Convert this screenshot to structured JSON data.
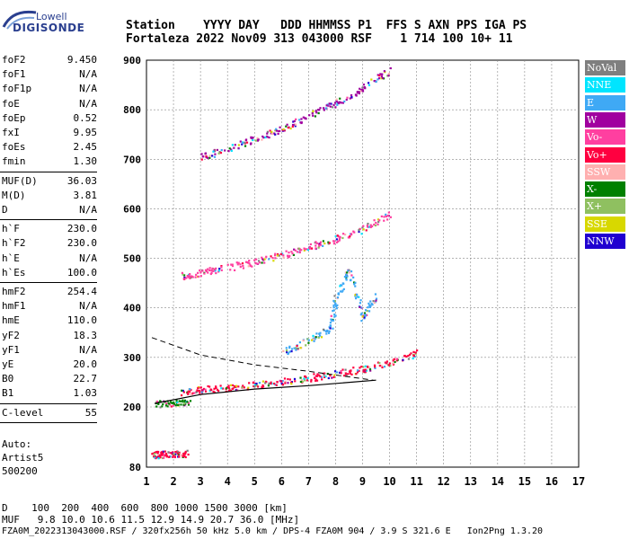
{
  "logo": {
    "top": "Lowell",
    "bottom": "DIGISONDE"
  },
  "header": {
    "row1": "Station    YYYY DAY   DDD HHMMSS P1  FFS S AXN PPS IGA PS",
    "row2": "Fortaleza 2022 Nov09 313 043000 RSF    1 714 100 10+ 11"
  },
  "params": [
    {
      "name": "foF2",
      "value": "9.450"
    },
    {
      "name": "foF1",
      "value": "N/A"
    },
    {
      "name": "foF1p",
      "value": "N/A"
    },
    {
      "name": "foE",
      "value": "N/A"
    },
    {
      "name": "foEp",
      "value": "0.52"
    },
    {
      "name": "fxI",
      "value": "9.95"
    },
    {
      "name": "foEs",
      "value": "2.45"
    },
    {
      "name": "fmin",
      "value": "1.30"
    },
    {
      "name": "MUF(D)",
      "value": "36.03"
    },
    {
      "name": "M(D)",
      "value": "3.81"
    },
    {
      "name": "D",
      "value": "N/A"
    },
    {
      "name": "h`F",
      "value": "230.0"
    },
    {
      "name": "h`F2",
      "value": "230.0"
    },
    {
      "name": "h`E",
      "value": "N/A"
    },
    {
      "name": "h`Es",
      "value": "100.0"
    },
    {
      "name": "hmF2",
      "value": "254.4"
    },
    {
      "name": "hmF1",
      "value": "N/A"
    },
    {
      "name": "hmE",
      "value": "110.0"
    },
    {
      "name": "yF2",
      "value": "18.3"
    },
    {
      "name": "yF1",
      "value": "N/A"
    },
    {
      "name": "yE",
      "value": "20.0"
    },
    {
      "name": "B0",
      "value": "22.7"
    },
    {
      "name": "B1",
      "value": "1.03"
    },
    {
      "name": "C-level",
      "value": "55"
    }
  ],
  "notes": {
    "auto": "Auto:",
    "artist": "Artist5",
    "code": "500200"
  },
  "legend": [
    {
      "label": "NoVal",
      "color": "#7f7f7f"
    },
    {
      "label": "NNE",
      "color": "#00e5ff"
    },
    {
      "label": "E",
      "color": "#3fa9f5"
    },
    {
      "label": "W",
      "color": "#a0009f"
    },
    {
      "label": "Vo-",
      "color": "#ff3fa0"
    },
    {
      "label": "Vo+",
      "color": "#ff0040"
    },
    {
      "label": "SSW",
      "color": "#ffb0b0"
    },
    {
      "label": "X-",
      "color": "#008000"
    },
    {
      "label": "X+",
      "color": "#8fc060"
    },
    {
      "label": "SSE",
      "color": "#d8d800"
    },
    {
      "label": "NNW",
      "color": "#2000d0"
    }
  ],
  "footer": {
    "d_row": "D    100  200  400  600  800 1000 1500 3000 [km]",
    "muf_row": "MUF   9.8 10.0 10.6 11.5 12.9 14.9 20.7 36.0 [MHz]",
    "info": "FZA0M_2022313043000.RSF / 320fx256h 50 kHz 5.0 km / DPS-4 FZA0M 904 / 3.9 S 321.6 E   Ion2Png 1.3.20"
  },
  "chart_data": {
    "type": "scatter",
    "xlim": [
      1,
      17
    ],
    "ylim": [
      80,
      900
    ],
    "x_ticks": [
      1,
      2,
      3,
      4,
      5,
      6,
      7,
      8,
      9,
      10,
      11,
      12,
      13,
      14,
      15,
      16,
      17
    ],
    "y_ticks": [
      80,
      200,
      300,
      400,
      500,
      600,
      700,
      800,
      900
    ],
    "grid": true,
    "legend_placement": "right",
    "traces": [
      {
        "name": "F2 trace",
        "color": "#ff0040",
        "points": [
          [
            2.3,
            232
          ],
          [
            3,
            236
          ],
          [
            4,
            240
          ],
          [
            5,
            246
          ],
          [
            6,
            252
          ],
          [
            7,
            260
          ],
          [
            8,
            268
          ],
          [
            9,
            278
          ],
          [
            10,
            292
          ],
          [
            11,
            310
          ]
        ]
      },
      {
        "name": "F2 2nd hop",
        "color": "#ff3fa0",
        "points": [
          [
            2.3,
            465
          ],
          [
            3,
            472
          ],
          [
            4,
            482
          ],
          [
            5,
            494
          ],
          [
            6,
            508
          ],
          [
            7,
            524
          ],
          [
            8,
            540
          ],
          [
            9,
            560
          ],
          [
            10,
            590
          ]
        ]
      },
      {
        "name": "F2 3rd hop",
        "color": "#a0009f",
        "points": [
          [
            3,
            705
          ],
          [
            4,
            722
          ],
          [
            5,
            742
          ],
          [
            6,
            764
          ],
          [
            7,
            788
          ],
          [
            8,
            815
          ],
          [
            9,
            845
          ],
          [
            10,
            880
          ]
        ]
      },
      {
        "name": "Es",
        "color": "#ff0040",
        "points": [
          [
            1.2,
            105
          ],
          [
            1.5,
            106
          ],
          [
            2,
            107
          ],
          [
            2.5,
            108
          ]
        ]
      },
      {
        "name": "oblique E",
        "color": "#3fa9f5",
        "points": [
          [
            6,
            310
          ],
          [
            7,
            335
          ],
          [
            7.8,
            360
          ],
          [
            8,
            420
          ],
          [
            8.5,
            480
          ],
          [
            9,
            380
          ],
          [
            9.5,
            430
          ]
        ]
      },
      {
        "name": "low F",
        "color": "#008000",
        "points": [
          [
            1.3,
            207
          ],
          [
            2,
            210
          ],
          [
            2.6,
            212
          ]
        ]
      }
    ],
    "profile": [
      [
        1.3,
        207
      ],
      [
        3,
        225
      ],
      [
        5,
        236
      ],
      [
        7,
        243
      ],
      [
        9.5,
        254
      ]
    ],
    "profile_dashed": [
      [
        1.2,
        340
      ],
      [
        3,
        305
      ],
      [
        5,
        285
      ],
      [
        7,
        272
      ],
      [
        9.4,
        254
      ]
    ]
  }
}
